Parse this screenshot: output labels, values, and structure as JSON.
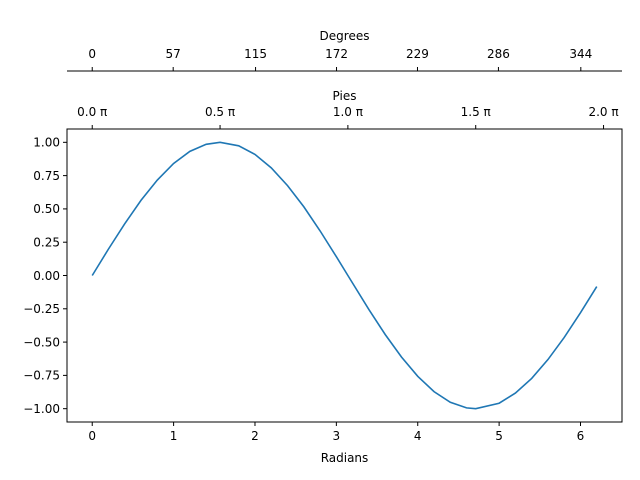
{
  "chart_data": {
    "type": "line",
    "title": "",
    "xlabel": "Radians",
    "ylabel": "",
    "xlim": [
      -0.31,
      6.51
    ],
    "ylim": [
      -1.1,
      1.1
    ],
    "grid": false,
    "x_ticks": [
      0,
      1,
      2,
      3,
      4,
      5,
      6
    ],
    "x_tick_labels": [
      "0",
      "1",
      "2",
      "3",
      "4",
      "5",
      "6"
    ],
    "y_ticks": [
      1.0,
      0.75,
      0.5,
      0.25,
      0.0,
      -0.25,
      -0.5,
      -0.75,
      -1.0
    ],
    "y_tick_labels": [
      "1.00",
      "0.75",
      "0.50",
      "0.25",
      "0.00",
      "−0.25",
      "−0.50",
      "−0.75",
      "−1.00"
    ],
    "secondary_axes": [
      {
        "label": "Pies",
        "position": "top",
        "ticks_x": [
          0,
          1.5708,
          3.1416,
          4.7124,
          6.2832
        ],
        "tick_labels": [
          "0.0 π",
          "0.5 π",
          "1.0 π",
          "1.5 π",
          "2.0 π"
        ]
      },
      {
        "label": "Degrees",
        "position": "top-detached",
        "ticks_x": [
          0,
          0.9948,
          2.0071,
          3.002,
          3.9968,
          4.9916,
          6.0039
        ],
        "tick_labels": [
          "0",
          "57",
          "115",
          "172",
          "229",
          "286",
          "344"
        ]
      }
    ],
    "series": [
      {
        "color": "#1f77b4",
        "x": [
          0.0,
          0.2,
          0.4,
          0.6,
          0.8,
          1.0,
          1.2,
          1.4,
          1.5708,
          1.8,
          2.0,
          2.2,
          2.4,
          2.6,
          2.8,
          3.0,
          3.1416,
          3.4,
          3.6,
          3.8,
          4.0,
          4.2,
          4.4,
          4.6,
          4.7124,
          5.0,
          5.2,
          5.4,
          5.6,
          5.8,
          6.0,
          6.2
        ],
        "y": [
          0.0,
          0.199,
          0.389,
          0.565,
          0.717,
          0.841,
          0.932,
          0.985,
          1.0,
          0.974,
          0.909,
          0.808,
          0.675,
          0.516,
          0.335,
          0.141,
          0.0,
          -0.256,
          -0.443,
          -0.612,
          -0.757,
          -0.872,
          -0.952,
          -0.994,
          -1.0,
          -0.959,
          -0.883,
          -0.773,
          -0.631,
          -0.465,
          -0.279,
          -0.083
        ]
      }
    ]
  }
}
